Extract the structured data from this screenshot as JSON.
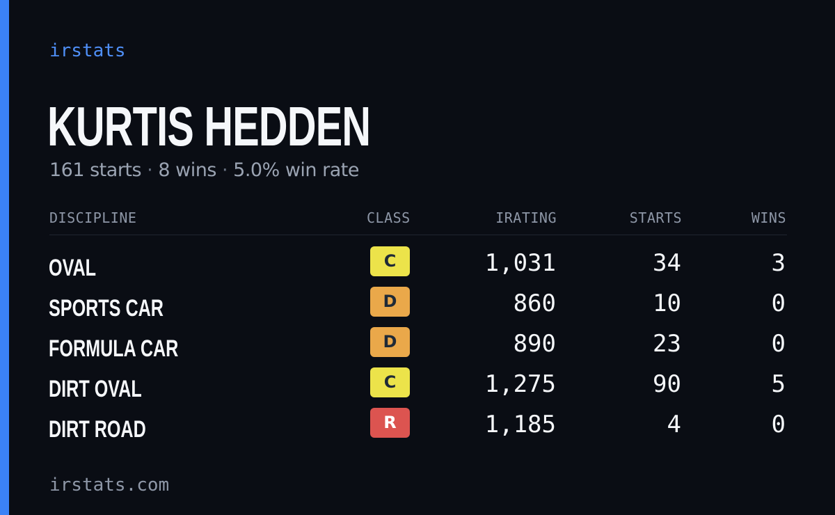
{
  "brand": "irstats",
  "player": {
    "name": "KURTIS HEDDEN"
  },
  "summary": {
    "starts": "161 starts",
    "wins": "8 wins",
    "win_rate": "5.0% win rate",
    "separator": "·"
  },
  "table": {
    "headers": {
      "discipline": "DISCIPLINE",
      "class": "CLASS",
      "irating": "IRATING",
      "starts": "STARTS",
      "wins": "WINS"
    },
    "rows": [
      {
        "discipline": "OVAL",
        "class": "C",
        "class_color": "#ece34a",
        "irating": "1,031",
        "starts": "34",
        "wins": "3"
      },
      {
        "discipline": "SPORTS CAR",
        "class": "D",
        "class_color": "#eaa84a",
        "irating": "860",
        "starts": "10",
        "wins": "0"
      },
      {
        "discipline": "FORMULA CAR",
        "class": "D",
        "class_color": "#eaa84a",
        "irating": "890",
        "starts": "23",
        "wins": "0"
      },
      {
        "discipline": "DIRT OVAL",
        "class": "C",
        "class_color": "#ece34a",
        "irating": "1,275",
        "starts": "90",
        "wins": "5"
      },
      {
        "discipline": "DIRT ROAD",
        "class": "R",
        "class_color": "#dc5450",
        "irating": "1,185",
        "starts": "4",
        "wins": "0"
      }
    ]
  },
  "footer": {
    "url": "irstats.com"
  },
  "colors": {
    "accent": "#3b82f6",
    "background": "#0a0d14"
  }
}
